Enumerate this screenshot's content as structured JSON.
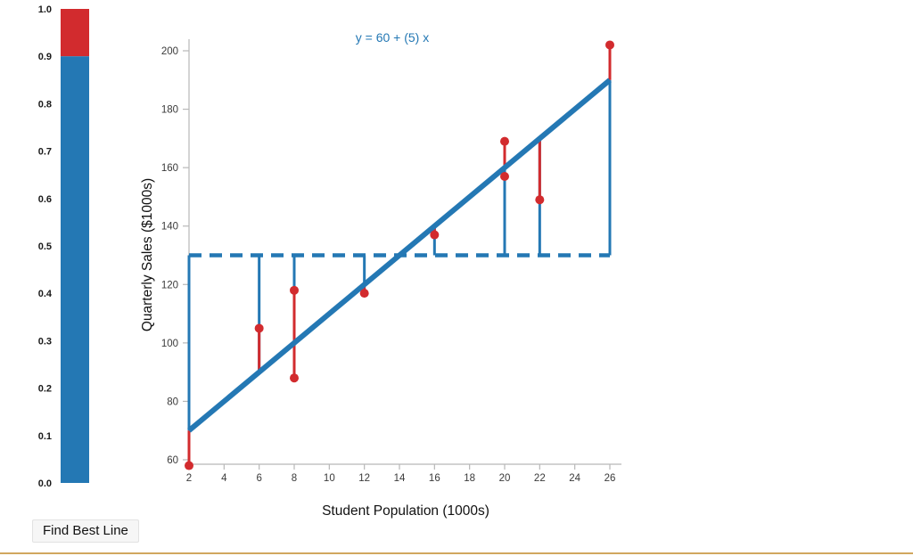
{
  "colors": {
    "blue": "#2478b4",
    "red": "#d22b2e",
    "axis": "#b8b8b8",
    "tick_text": "#3a3a3a",
    "label_text": "#111111",
    "gauge_label_text": "#1a1a1a",
    "divider": "#d1a75f",
    "button_bg": "#f6f6f6",
    "button_border": "#e2e2e2"
  },
  "gauge": {
    "tick_labels": [
      "1.0",
      "0.9",
      "0.8",
      "0.7",
      "0.6",
      "0.5",
      "0.4",
      "0.3",
      "0.2",
      "0.1",
      "0.0"
    ],
    "fill_fraction_blue": 0.9,
    "fill_fraction_red": 0.1
  },
  "controls": {
    "find_best_line_label": "Find Best Line"
  },
  "chart_data": {
    "type": "scatter",
    "title": "y = 60 + (5) x",
    "xlabel": "Student Population (1000s)",
    "ylabel": "Quarterly Sales ($1000s)",
    "xlim": [
      2,
      26
    ],
    "ylim": [
      60,
      200
    ],
    "x_ticks": [
      2,
      4,
      6,
      8,
      10,
      12,
      14,
      16,
      18,
      20,
      22,
      24,
      26
    ],
    "y_ticks": [
      60,
      80,
      100,
      120,
      140,
      160,
      180,
      200
    ],
    "points": [
      [
        2,
        58
      ],
      [
        6,
        105
      ],
      [
        8,
        88
      ],
      [
        8,
        118
      ],
      [
        12,
        117
      ],
      [
        16,
        137
      ],
      [
        20,
        157
      ],
      [
        20,
        169
      ],
      [
        22,
        149
      ],
      [
        26,
        202
      ]
    ],
    "regression": {
      "intercept": 60,
      "slope": 5
    },
    "mean_line_y": 130,
    "grid": false,
    "legend": "none"
  }
}
